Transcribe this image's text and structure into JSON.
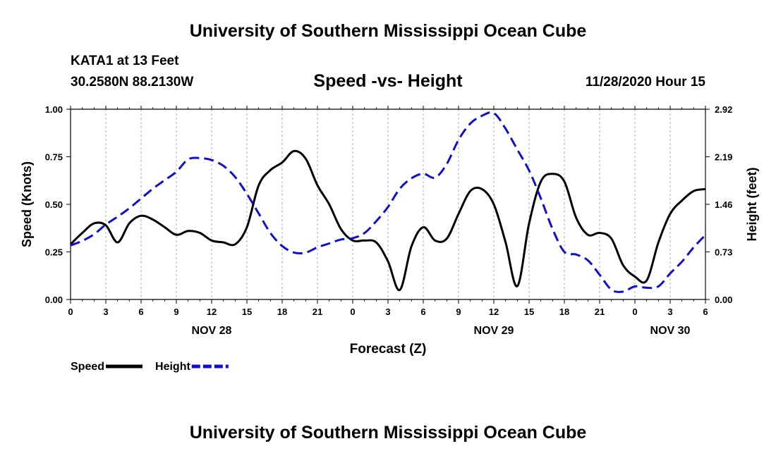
{
  "header": {
    "org_title": "University of Southern Mississippi Ocean Cube",
    "station": "KATA1 at 13 Feet",
    "coords": "30.2580N 88.2130W",
    "datetime": "11/28/2020 Hour 15"
  },
  "footer": {
    "org_title": "University of Southern Mississippi Ocean Cube"
  },
  "chart_data": {
    "type": "line",
    "title": "Speed -vs- Height",
    "xlabel": "Forecast (Z)",
    "ylabel": "Speed (Knots)",
    "y2label": "Height (feet)",
    "xlim": [
      0,
      54
    ],
    "ylim": [
      0,
      1.0
    ],
    "y2lim": [
      0,
      2.92
    ],
    "x_ticks": [
      0,
      3,
      6,
      9,
      12,
      15,
      18,
      21,
      24,
      27,
      30,
      33,
      36,
      39,
      42,
      45,
      48,
      51,
      54
    ],
    "x_tick_labels": [
      "0",
      "3",
      "6",
      "9",
      "12",
      "15",
      "18",
      "21",
      "0",
      "3",
      "6",
      "9",
      "12",
      "15",
      "18",
      "21",
      "0",
      "3",
      "6"
    ],
    "y_ticks": [
      0,
      0.25,
      0.5,
      0.75,
      1.0
    ],
    "y_tick_labels": [
      "0.00",
      "0.25",
      "0.50",
      "0.75",
      "1.00"
    ],
    "y2_ticks": [
      0,
      0.73,
      1.46,
      2.19,
      2.92
    ],
    "y2_tick_labels": [
      "0.00",
      "0.73",
      "1.46",
      "2.19",
      "2.92"
    ],
    "day_labels": [
      {
        "x": 12,
        "label": "NOV 28"
      },
      {
        "x": 36,
        "label": "NOV 29"
      },
      {
        "x": 51,
        "label": "NOV 30"
      }
    ],
    "series": [
      {
        "name": "Speed",
        "axis": "left",
        "color": "#000000",
        "style": "solid",
        "x": [
          0,
          1,
          2,
          3,
          4,
          5,
          6,
          7,
          8,
          9,
          10,
          11,
          12,
          13,
          14,
          15,
          16,
          17,
          18,
          19,
          20,
          21,
          22,
          23,
          24,
          25,
          26,
          27,
          28,
          29,
          30,
          31,
          32,
          33,
          34,
          35,
          36,
          37,
          38,
          39,
          40,
          41,
          42,
          43,
          44,
          45,
          46,
          47,
          48,
          49,
          50,
          51,
          52,
          53,
          54
        ],
        "values": [
          0.29,
          0.35,
          0.4,
          0.39,
          0.3,
          0.4,
          0.44,
          0.42,
          0.38,
          0.34,
          0.36,
          0.35,
          0.31,
          0.3,
          0.29,
          0.38,
          0.6,
          0.68,
          0.72,
          0.78,
          0.74,
          0.6,
          0.5,
          0.37,
          0.31,
          0.31,
          0.3,
          0.2,
          0.05,
          0.28,
          0.38,
          0.31,
          0.32,
          0.45,
          0.57,
          0.58,
          0.5,
          0.3,
          0.07,
          0.4,
          0.62,
          0.66,
          0.62,
          0.43,
          0.34,
          0.35,
          0.32,
          0.18,
          0.12,
          0.1,
          0.3,
          0.45,
          0.52,
          0.57,
          0.58
        ]
      },
      {
        "name": "Height",
        "axis": "right",
        "color": "#1010cc",
        "style": "dashed",
        "x": [
          0,
          1,
          2,
          3,
          4,
          5,
          6,
          7,
          8,
          9,
          10,
          11,
          12,
          13,
          14,
          15,
          16,
          17,
          18,
          19,
          20,
          21,
          22,
          23,
          24,
          25,
          26,
          27,
          28,
          29,
          30,
          31,
          32,
          33,
          34,
          35,
          36,
          37,
          38,
          39,
          40,
          41,
          42,
          43,
          44,
          45,
          46,
          47,
          48,
          49,
          50,
          51,
          52,
          53,
          54
        ],
        "values": [
          0.83,
          0.9,
          1.0,
          1.15,
          1.27,
          1.4,
          1.55,
          1.7,
          1.83,
          1.96,
          2.15,
          2.17,
          2.14,
          2.05,
          1.88,
          1.62,
          1.32,
          1.02,
          0.82,
          0.72,
          0.72,
          0.8,
          0.86,
          0.92,
          0.94,
          1.02,
          1.2,
          1.42,
          1.7,
          1.86,
          1.93,
          1.87,
          2.08,
          2.45,
          2.7,
          2.82,
          2.86,
          2.62,
          2.3,
          1.98,
          1.55,
          1.08,
          0.73,
          0.69,
          0.6,
          0.38,
          0.15,
          0.12,
          0.2,
          0.18,
          0.2,
          0.4,
          0.58,
          0.8,
          0.99
        ]
      }
    ]
  }
}
